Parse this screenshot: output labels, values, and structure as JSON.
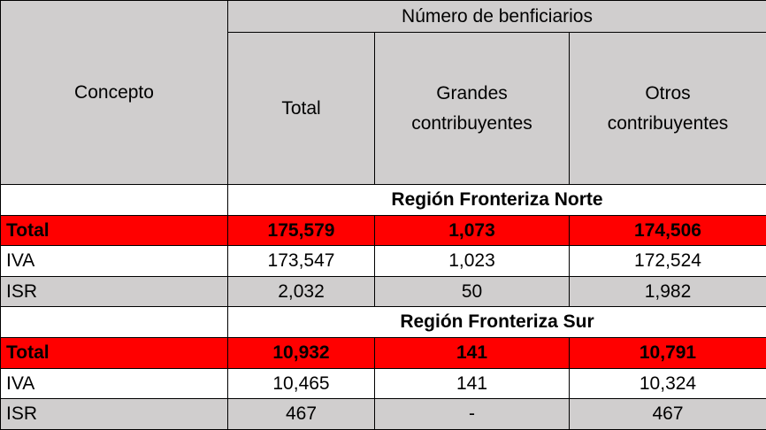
{
  "header": {
    "concepto": "Concepto",
    "group_title": "Número de benficiarios",
    "total": "Total",
    "grandes_line1": "Grandes",
    "grandes_line2": "contribuyentes",
    "otros_line1": "Otros",
    "otros_line2": "contribuyentes"
  },
  "sections": [
    {
      "region": "Región Fronteriza Norte",
      "rows": [
        {
          "concepto": "Total",
          "total": "175,579",
          "grandes": "1,073",
          "otros": "174,506"
        },
        {
          "concepto": "IVA",
          "total": "173,547",
          "grandes": "1,023",
          "otros": "172,524"
        },
        {
          "concepto": "ISR",
          "total": "2,032",
          "grandes": "50",
          "otros": "1,982"
        }
      ]
    },
    {
      "region": "Región Fronteriza Sur",
      "rows": [
        {
          "concepto": "Total",
          "total": "10,932",
          "grandes": "141",
          "otros": "10,791"
        },
        {
          "concepto": "IVA",
          "total": "10,465",
          "grandes": "141",
          "otros": "10,324"
        },
        {
          "concepto": "ISR",
          "total": "467",
          "grandes": "-",
          "otros": "467"
        }
      ]
    }
  ],
  "colors": {
    "header_gray": "#d0cece",
    "total_row_red": "#ff0000"
  }
}
